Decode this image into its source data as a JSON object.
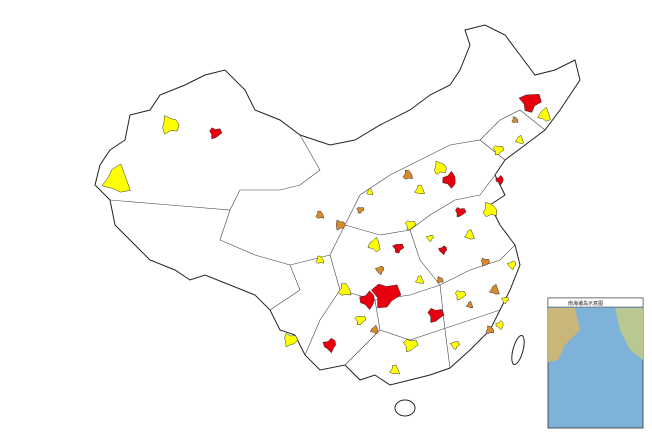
{
  "inset": {
    "title": "南海诸岛示意图"
  }
}
